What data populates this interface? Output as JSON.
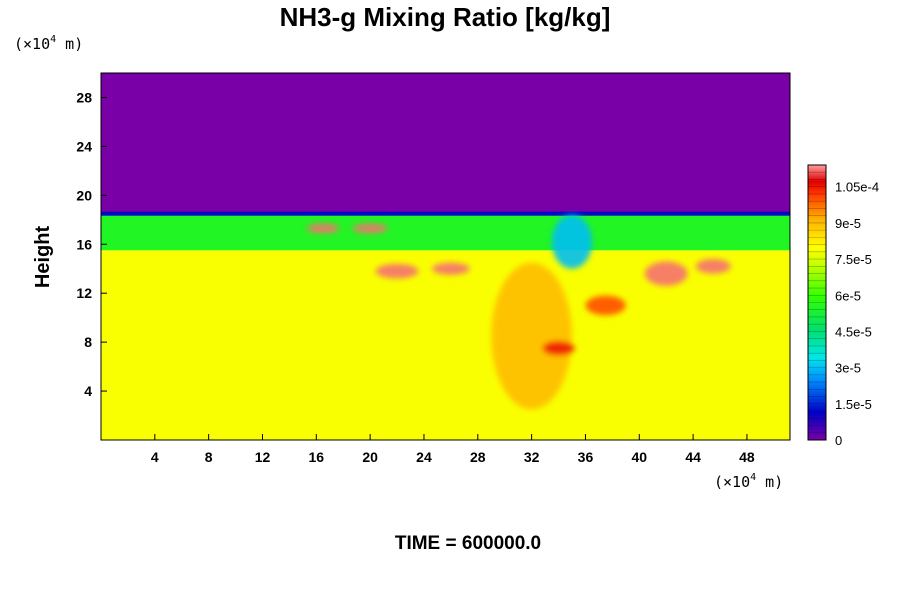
{
  "chart_data": {
    "type": "heatmap",
    "title": "NH3-g Mixing Ratio [kg/kg]",
    "ylabel": "Height",
    "x_unit": {
      "prefix": "(×10",
      "exp": "4",
      "suffix": " m)"
    },
    "y_unit": {
      "prefix": "(×10",
      "exp": "4",
      "suffix": " m)"
    },
    "xlim": [
      0,
      51.2
    ],
    "ylim": [
      0,
      30
    ],
    "x_ticks": [
      4,
      8,
      12,
      16,
      20,
      24,
      28,
      32,
      36,
      40,
      44,
      48
    ],
    "y_ticks": [
      4,
      8,
      12,
      16,
      20,
      24,
      28
    ],
    "colorbar": {
      "min": 0,
      "max": 0.000114,
      "tick_values": [
        0,
        1.5e-05,
        3e-05,
        4.5e-05,
        6e-05,
        7.5e-05,
        9e-05,
        0.000105
      ],
      "tick_labels": [
        "0",
        "1.5e-5",
        "3e-5",
        "4.5e-5",
        "6e-5",
        "7.5e-5",
        "9e-5",
        "1.05e-4"
      ],
      "levels": 38
    },
    "field_regions": [
      {
        "region": "upper layer",
        "y_range": [
          18.5,
          30
        ],
        "value": 0
      },
      {
        "region": "middle band",
        "y_range": [
          15.5,
          18.5
        ],
        "value": 5.5e-05
      },
      {
        "region": "lower layer",
        "y_range": [
          0,
          15.5
        ],
        "value": 7.9e-05
      }
    ],
    "features": [
      {
        "x": 32,
        "y": 8.5,
        "rx": 3,
        "ry": 6,
        "value": 9e-05
      },
      {
        "x": 34,
        "y": 7.5,
        "rx": 1.2,
        "ry": 0.6,
        "value": 0.000105
      },
      {
        "x": 22,
        "y": 13.8,
        "rx": 1.6,
        "ry": 0.6,
        "value": 0.000112
      },
      {
        "x": 26,
        "y": 14,
        "rx": 1.4,
        "ry": 0.5,
        "value": 0.000112
      },
      {
        "x": 42,
        "y": 13.6,
        "rx": 1.6,
        "ry": 1.0,
        "value": 0.000112
      },
      {
        "x": 45.5,
        "y": 14.2,
        "rx": 1.3,
        "ry": 0.6,
        "value": 0.000112
      },
      {
        "x": 20,
        "y": 17.3,
        "rx": 1.3,
        "ry": 0.4,
        "value": 0.000112
      },
      {
        "x": 16.5,
        "y": 17.3,
        "rx": 1.2,
        "ry": 0.4,
        "value": 0.000112
      },
      {
        "x": 35,
        "y": 16.2,
        "rx": 1.5,
        "ry": 2.2,
        "value": 3e-05
      },
      {
        "x": 37.5,
        "y": 11,
        "rx": 1.5,
        "ry": 0.8,
        "value": 0.0001
      }
    ],
    "footer": "TIME = 600000.0"
  }
}
